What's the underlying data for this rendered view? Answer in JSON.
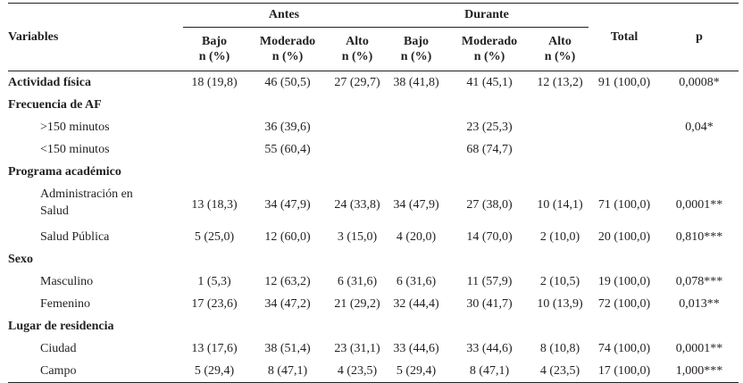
{
  "header": {
    "variables": "Variables",
    "antes": "Antes",
    "durante": "Durante",
    "total": "Total",
    "p": "p",
    "sub": [
      {
        "line1": "Bajo",
        "line2": "n (%)"
      },
      {
        "line1": "Moderado",
        "line2": "n (%)"
      },
      {
        "line1": "Alto",
        "line2": "n (%)"
      },
      {
        "line1": "Bajo",
        "line2": "n (%)"
      },
      {
        "line1": "Moderado",
        "line2": "n (%)"
      },
      {
        "line1": "Alto",
        "line2": "n (%)"
      }
    ]
  },
  "rows": [
    {
      "label": "Actividad física",
      "bold": true,
      "indent": false,
      "cells": [
        "18 (19,8)",
        "46 (50,5)",
        "27 (29,7)",
        "38 (41,8)",
        "41 (45,1)",
        "12 (13,2)",
        "91 (100,0)",
        "0,0008*"
      ]
    },
    {
      "label": "Frecuencia de AF",
      "bold": true,
      "indent": false,
      "cells": [
        "",
        "",
        "",
        "",
        "",
        "",
        "",
        ""
      ]
    },
    {
      "label": ">150 minutos",
      "bold": false,
      "indent": true,
      "cells": [
        "",
        "36 (39,6)",
        "",
        "",
        "23 (25,3)",
        "",
        "",
        "0,04*"
      ]
    },
    {
      "label": "<150 minutos",
      "bold": false,
      "indent": true,
      "cells": [
        "",
        "55 (60,4)",
        "",
        "",
        "68 (74,7)",
        "",
        "",
        ""
      ]
    },
    {
      "label": "Programa académico",
      "bold": true,
      "indent": false,
      "cells": [
        "",
        "",
        "",
        "",
        "",
        "",
        "",
        ""
      ]
    },
    {
      "label": "Administración en",
      "label2": "Salud",
      "bold": false,
      "indent": true,
      "cells": [
        "13 (18,3)",
        "34 (47,9)",
        "24 (33,8)",
        "34 (47,9)",
        "27 (38,0)",
        "10 (14,1)",
        "71 (100,0)",
        "0,0001**"
      ]
    },
    {
      "label": "Salud Pública",
      "bold": false,
      "indent": true,
      "cells": [
        "5 (25,0)",
        "12 (60,0)",
        "3 (15,0)",
        "4 (20,0)",
        "14 (70,0)",
        "2 (10,0)",
        "20 (100,0)",
        "0,810***"
      ]
    },
    {
      "label": "Sexo",
      "bold": true,
      "indent": false,
      "cells": [
        "",
        "",
        "",
        "",
        "",
        "",
        "",
        ""
      ]
    },
    {
      "label": "Masculino",
      "bold": false,
      "indent": true,
      "cells": [
        "1 (5,3)",
        "12 (63,2)",
        "6 (31,6)",
        "6 (31,6)",
        "11 (57,9)",
        "2 (10,5)",
        "19 (100,0)",
        "0,078***"
      ]
    },
    {
      "label": "Femenino",
      "bold": false,
      "indent": true,
      "cells": [
        "17 (23,6)",
        "34 (47,2)",
        "21 (29,2)",
        "32 (44,4)",
        "30 (41,7)",
        "10 (13,9)",
        "72 (100,0)",
        "0,013**"
      ]
    },
    {
      "label": "Lugar de residencia",
      "bold": true,
      "indent": false,
      "cells": [
        "",
        "",
        "",
        "",
        "",
        "",
        "",
        ""
      ]
    },
    {
      "label": "Ciudad",
      "bold": false,
      "indent": true,
      "cells": [
        "13 (17,6)",
        "38 (51,4)",
        "23 (31,1)",
        "33 (44,6)",
        "33 (44,6)",
        "8 (10,8)",
        "74 (100,0)",
        "0,0001**"
      ]
    },
    {
      "label": "Campo",
      "bold": false,
      "indent": true,
      "cells": [
        "5 (29,4)",
        "8 (47,1)",
        "4 (23,5)",
        "5 (29,4)",
        "8 (47,1)",
        "4 (23,5)",
        "17 (100,0)",
        "1,000***"
      ]
    }
  ]
}
